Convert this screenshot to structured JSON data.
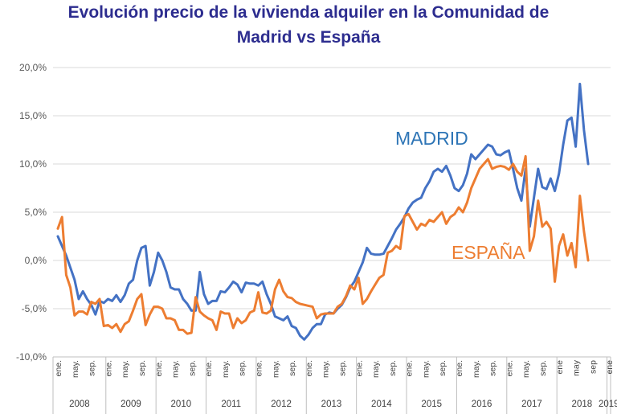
{
  "title_line1": "Evolución precio de la vivienda alquiler en la Comunidad de",
  "title_line2": "Madrid vs España",
  "chart_data": {
    "type": "line",
    "title": "Evolución precio de la vivienda alquiler en la Comunidad de Madrid vs España",
    "ylim": [
      -10,
      20
    ],
    "yticks": [
      20,
      15,
      10,
      5,
      0,
      -5,
      -10
    ],
    "ytick_labels": [
      "20,0%",
      "15,0%",
      "10,0%",
      "5,0%",
      "0,0%",
      "-5,0%",
      "-10,0%"
    ],
    "x_start": "2008-01",
    "x_end": "2019-03",
    "month_ticks": [
      {
        "m": 0,
        "label": "ene."
      },
      {
        "m": 4,
        "label": "may."
      },
      {
        "m": 8,
        "label": "sep."
      },
      {
        "m": 12,
        "label": "ene."
      },
      {
        "m": 16,
        "label": "may."
      },
      {
        "m": 20,
        "label": "sep."
      },
      {
        "m": 24,
        "label": "ene."
      },
      {
        "m": 28,
        "label": "may."
      },
      {
        "m": 32,
        "label": "sep."
      },
      {
        "m": 36,
        "label": "ene."
      },
      {
        "m": 40,
        "label": "may."
      },
      {
        "m": 44,
        "label": "sep."
      },
      {
        "m": 48,
        "label": "ene."
      },
      {
        "m": 52,
        "label": "may."
      },
      {
        "m": 56,
        "label": "sep."
      },
      {
        "m": 60,
        "label": "ene."
      },
      {
        "m": 64,
        "label": "may."
      },
      {
        "m": 68,
        "label": "sep."
      },
      {
        "m": 72,
        "label": "ene."
      },
      {
        "m": 76,
        "label": "may."
      },
      {
        "m": 80,
        "label": "sep."
      },
      {
        "m": 84,
        "label": "ene."
      },
      {
        "m": 88,
        "label": "may."
      },
      {
        "m": 92,
        "label": "sep."
      },
      {
        "m": 96,
        "label": "ene."
      },
      {
        "m": 100,
        "label": "may."
      },
      {
        "m": 104,
        "label": "sep."
      },
      {
        "m": 108,
        "label": "ene."
      },
      {
        "m": 112,
        "label": "may."
      },
      {
        "m": 116,
        "label": "sep."
      },
      {
        "m": 120,
        "label": "ene"
      },
      {
        "m": 124,
        "label": "may"
      },
      {
        "m": 128,
        "label": "sep"
      },
      {
        "m": 132,
        "label": "ene"
      }
    ],
    "years": [
      "2008",
      "2009",
      "2010",
      "2011",
      "2012",
      "2013",
      "2014",
      "2015",
      "2016",
      "2017",
      "2018",
      "2019"
    ],
    "series": [
      {
        "name": "MADRID",
        "label": "MADRID",
        "color": "#4472c4",
        "label_color": "#2e75b6",
        "points": [
          [
            0,
            2.5
          ],
          [
            2,
            0.5
          ],
          [
            4,
            -2
          ],
          [
            5,
            -4
          ],
          [
            6,
            -3.2
          ],
          [
            7,
            -4
          ],
          [
            8,
            -4.6
          ],
          [
            9,
            -5.6
          ],
          [
            10,
            -4.2
          ],
          [
            11,
            -4.4
          ],
          [
            12,
            -4
          ],
          [
            13,
            -4.2
          ],
          [
            14,
            -3.6
          ],
          [
            15,
            -4.3
          ],
          [
            16,
            -3.6
          ],
          [
            17,
            -2.4
          ],
          [
            18,
            -2
          ],
          [
            19,
            0
          ],
          [
            20,
            1.3
          ],
          [
            21,
            1.5
          ],
          [
            22,
            -2.6
          ],
          [
            23,
            -1.2
          ],
          [
            24,
            0.8
          ],
          [
            25,
            0
          ],
          [
            26,
            -1.2
          ],
          [
            27,
            -2.8
          ],
          [
            28,
            -3
          ],
          [
            29,
            -3
          ],
          [
            30,
            -4
          ],
          [
            31,
            -4.5
          ],
          [
            32,
            -5.2
          ],
          [
            33,
            -5.2
          ],
          [
            34,
            -1.2
          ],
          [
            35,
            -3.5
          ],
          [
            36,
            -4.5
          ],
          [
            37,
            -4.2
          ],
          [
            38,
            -4.2
          ],
          [
            39,
            -3.2
          ],
          [
            40,
            -3.3
          ],
          [
            41,
            -2.8
          ],
          [
            42,
            -2.2
          ],
          [
            43,
            -2.5
          ],
          [
            44,
            -3.3
          ],
          [
            45,
            -2.3
          ],
          [
            46,
            -2.4
          ],
          [
            47,
            -2.4
          ],
          [
            48,
            -2.6
          ],
          [
            49,
            -2.2
          ],
          [
            50,
            -3.5
          ],
          [
            51,
            -4.5
          ],
          [
            52,
            -5.8
          ],
          [
            53,
            -6
          ],
          [
            54,
            -6.2
          ],
          [
            55,
            -5.8
          ],
          [
            56,
            -6.8
          ],
          [
            57,
            -7
          ],
          [
            58,
            -7.8
          ],
          [
            59,
            -8.2
          ],
          [
            60,
            -7.7
          ],
          [
            61,
            -7
          ],
          [
            62,
            -6.6
          ],
          [
            63,
            -6.6
          ],
          [
            64,
            -5.6
          ],
          [
            65,
            -5.4
          ],
          [
            66,
            -5.5
          ],
          [
            67,
            -5
          ],
          [
            68,
            -4.6
          ],
          [
            69,
            -3.8
          ],
          [
            70,
            -2.8
          ],
          [
            71,
            -2.2
          ],
          [
            72,
            -1.2
          ],
          [
            73,
            -0.2
          ],
          [
            74,
            1.3
          ],
          [
            75,
            0.7
          ],
          [
            76,
            0.6
          ],
          [
            77,
            0.6
          ],
          [
            78,
            0.7
          ],
          [
            79,
            1.5
          ],
          [
            80,
            2.3
          ],
          [
            81,
            3.2
          ],
          [
            82,
            3.8
          ],
          [
            83,
            4.5
          ],
          [
            84,
            5.4
          ],
          [
            85,
            6
          ],
          [
            86,
            6.3
          ],
          [
            87,
            6.5
          ],
          [
            88,
            7.5
          ],
          [
            89,
            8.2
          ],
          [
            90,
            9.2
          ],
          [
            91,
            9.5
          ],
          [
            92,
            9.2
          ],
          [
            93,
            9.8
          ],
          [
            94,
            8.8
          ],
          [
            95,
            7.5
          ],
          [
            96,
            7.2
          ],
          [
            97,
            7.8
          ],
          [
            98,
            9
          ],
          [
            99,
            11
          ],
          [
            100,
            10.5
          ],
          [
            101,
            11
          ],
          [
            102,
            11.5
          ],
          [
            103,
            12
          ],
          [
            104,
            11.8
          ],
          [
            105,
            11
          ],
          [
            106,
            10.9
          ],
          [
            107,
            11.2
          ],
          [
            108,
            11.4
          ],
          [
            109,
            9.5
          ],
          [
            110,
            7.5
          ],
          [
            111,
            6.2
          ],
          [
            112,
            9.5
          ],
          [
            113,
            3.5
          ],
          [
            114,
            6.5
          ],
          [
            115,
            9.5
          ],
          [
            116,
            7.6
          ],
          [
            117,
            7.4
          ],
          [
            118,
            8.5
          ],
          [
            119,
            7.2
          ],
          [
            120,
            9
          ],
          [
            121,
            12
          ],
          [
            122,
            14.5
          ],
          [
            123,
            14.8
          ],
          [
            124,
            11.8
          ],
          [
            125,
            18.3
          ],
          [
            126,
            13.5
          ],
          [
            127,
            10
          ]
        ]
      },
      {
        "name": "ESPAÑA",
        "label": "ESPAÑA",
        "color": "#ed7d31",
        "label_color": "#ed7d31",
        "points": [
          [
            0,
            3.3
          ],
          [
            1,
            4.5
          ],
          [
            2,
            -1.5
          ],
          [
            3,
            -2.8
          ],
          [
            4,
            -5.7
          ],
          [
            5,
            -5.3
          ],
          [
            6,
            -5.3
          ],
          [
            7,
            -5.6
          ],
          [
            8,
            -4.3
          ],
          [
            9,
            -4.5
          ],
          [
            10,
            -4
          ],
          [
            11,
            -6.8
          ],
          [
            12,
            -6.7
          ],
          [
            13,
            -7
          ],
          [
            14,
            -6.6
          ],
          [
            15,
            -7.4
          ],
          [
            16,
            -6.6
          ],
          [
            17,
            -6.3
          ],
          [
            18,
            -5.2
          ],
          [
            19,
            -4
          ],
          [
            20,
            -3.5
          ],
          [
            21,
            -6.7
          ],
          [
            22,
            -5.6
          ],
          [
            23,
            -4.8
          ],
          [
            24,
            -4.8
          ],
          [
            25,
            -5
          ],
          [
            26,
            -6
          ],
          [
            27,
            -6
          ],
          [
            28,
            -6.2
          ],
          [
            29,
            -7.2
          ],
          [
            30,
            -7.2
          ],
          [
            31,
            -7.6
          ],
          [
            32,
            -7.5
          ],
          [
            33,
            -3.8
          ],
          [
            34,
            -5.3
          ],
          [
            35,
            -5.7
          ],
          [
            36,
            -6
          ],
          [
            37,
            -6.2
          ],
          [
            38,
            -7.2
          ],
          [
            39,
            -5.3
          ],
          [
            40,
            -5.5
          ],
          [
            41,
            -5.5
          ],
          [
            42,
            -7
          ],
          [
            43,
            -6
          ],
          [
            44,
            -6.5
          ],
          [
            45,
            -6.2
          ],
          [
            46,
            -5.4
          ],
          [
            47,
            -5.2
          ],
          [
            48,
            -3.3
          ],
          [
            49,
            -5.4
          ],
          [
            50,
            -5.5
          ],
          [
            51,
            -5.2
          ],
          [
            52,
            -3
          ],
          [
            53,
            -2
          ],
          [
            54,
            -3.2
          ],
          [
            55,
            -3.8
          ],
          [
            56,
            -3.9
          ],
          [
            57,
            -4.3
          ],
          [
            58,
            -4.5
          ],
          [
            59,
            -4.6
          ],
          [
            60,
            -4.7
          ],
          [
            61,
            -4.8
          ],
          [
            62,
            -6
          ],
          [
            63,
            -5.6
          ],
          [
            64,
            -5.5
          ],
          [
            65,
            -5.5
          ],
          [
            66,
            -5.5
          ],
          [
            67,
            -4.8
          ],
          [
            68,
            -4.5
          ],
          [
            69,
            -3.7
          ],
          [
            70,
            -2.6
          ],
          [
            71,
            -3
          ],
          [
            72,
            -1.8
          ],
          [
            73,
            -4.5
          ],
          [
            74,
            -4
          ],
          [
            75,
            -3.2
          ],
          [
            76,
            -2.5
          ],
          [
            77,
            -1.8
          ],
          [
            78,
            -1.5
          ],
          [
            79,
            0.8
          ],
          [
            80,
            1
          ],
          [
            81,
            1.5
          ],
          [
            82,
            1.2
          ],
          [
            83,
            4.6
          ],
          [
            84,
            4.8
          ],
          [
            85,
            4
          ],
          [
            86,
            3.2
          ],
          [
            87,
            3.8
          ],
          [
            88,
            3.6
          ],
          [
            89,
            4.2
          ],
          [
            90,
            4
          ],
          [
            91,
            4.5
          ],
          [
            92,
            5
          ],
          [
            93,
            3.8
          ],
          [
            94,
            4.5
          ],
          [
            95,
            4.8
          ],
          [
            96,
            5.5
          ],
          [
            97,
            5
          ],
          [
            98,
            6
          ],
          [
            99,
            7.5
          ],
          [
            100,
            8.5
          ],
          [
            101,
            9.5
          ],
          [
            102,
            10
          ],
          [
            103,
            10.5
          ],
          [
            104,
            9.5
          ],
          [
            105,
            9.7
          ],
          [
            106,
            9.8
          ],
          [
            107,
            9.7
          ],
          [
            108,
            9.4
          ],
          [
            109,
            10
          ],
          [
            110,
            9.2
          ],
          [
            111,
            8.8
          ],
          [
            112,
            10.8
          ],
          [
            113,
            1
          ],
          [
            114,
            2.5
          ],
          [
            115,
            6.2
          ],
          [
            116,
            3.5
          ],
          [
            117,
            4
          ],
          [
            118,
            3.3
          ],
          [
            119,
            -2.2
          ],
          [
            120,
            1.5
          ],
          [
            121,
            2.7
          ],
          [
            122,
            0.5
          ],
          [
            123,
            1.8
          ],
          [
            124,
            -0.7
          ],
          [
            125,
            6.7
          ],
          [
            126,
            3
          ],
          [
            127,
            0
          ]
        ]
      }
    ]
  }
}
